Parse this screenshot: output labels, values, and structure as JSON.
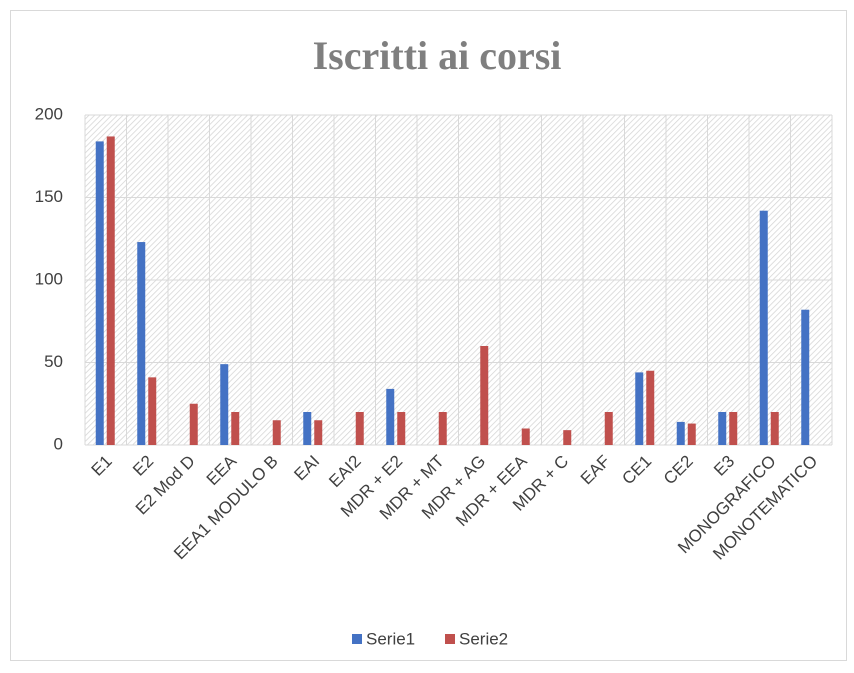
{
  "chart_data": {
    "type": "bar",
    "title": "Iscritti ai corsi",
    "categories": [
      "E1",
      "E2",
      "E2 Mod D",
      "EEA",
      "EEA1 MODULO B",
      "EAI",
      "EAI2",
      "MDR + E2",
      "MDR + MT",
      "MDR + AG",
      "MDR + EEA",
      "MDR + C",
      "EAF",
      "CE1",
      "CE2",
      "E3",
      "MONOGRAFICO",
      "MONOTEMATICO"
    ],
    "series": [
      {
        "name": "Serie1",
        "color": "#4472c4",
        "values": [
          184,
          123,
          null,
          49,
          null,
          20,
          null,
          34,
          null,
          null,
          null,
          null,
          null,
          44,
          14,
          20,
          142,
          82
        ]
      },
      {
        "name": "Serie2",
        "color": "#c0504d",
        "values": [
          187,
          41,
          25,
          20,
          15,
          15,
          20,
          20,
          20,
          60,
          10,
          9,
          20,
          45,
          13,
          20,
          20,
          null
        ]
      }
    ],
    "ylim": [
      0,
      200
    ],
    "yticks": [
      0,
      50,
      100,
      150,
      200
    ],
    "grid": true,
    "legend": "bottom"
  }
}
